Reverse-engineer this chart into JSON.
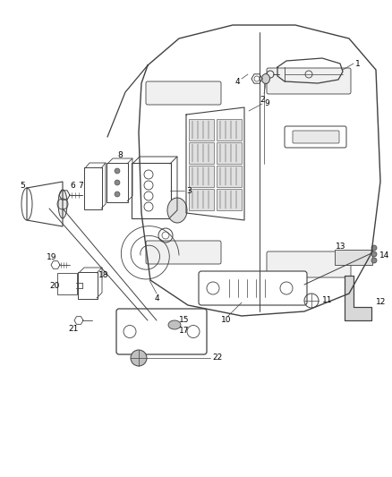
{
  "bg_color": "#ffffff",
  "line_color": "#404040",
  "fig_width": 4.38,
  "fig_height": 5.33,
  "dpi": 100
}
